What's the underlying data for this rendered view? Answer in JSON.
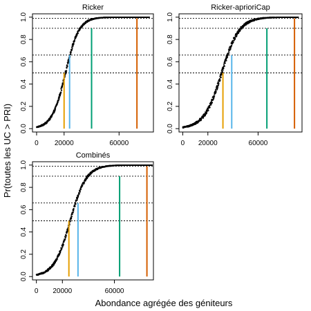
{
  "figure": {
    "xlabel": "Abondance agrégée des géniteurs",
    "ylabel": "Pr(toutes les UC > PRI)"
  },
  "chart_data": [
    {
      "type": "scatter",
      "title": "Ricker",
      "xlabel": "Abondance agrégée des géniteurs",
      "ylabel": "Pr(toutes les UC > PRI)",
      "xlim": [
        -3000,
        85000
      ],
      "ylim": [
        -0.03,
        1.03
      ],
      "x_ticks": [
        0,
        20000,
        60000
      ],
      "y_ticks": [
        0.0,
        0.2,
        0.4,
        0.6,
        0.8,
        1.0
      ],
      "curve": {
        "midpoint": 21000,
        "scale": 4900,
        "x_min": 0,
        "x_max": 82000,
        "spread": 0.02
      },
      "hlines": [
        0.5,
        0.66,
        0.9,
        0.99
      ],
      "vlines": [
        {
          "x": 20000,
          "y": 0.5,
          "color": "#E69F00"
        },
        {
          "x": 24000,
          "y": 0.66,
          "color": "#56B4E9"
        },
        {
          "x": 40000,
          "y": 0.9,
          "color": "#009E73"
        },
        {
          "x": 73000,
          "y": 0.99,
          "color": "#D55E00"
        }
      ]
    },
    {
      "type": "scatter",
      "title": "Ricker-aprioriCap",
      "xlabel": "Abondance agrégée des géniteurs",
      "ylabel": "Pr(toutes les UC > PRI)",
      "xlim": [
        -3000,
        95000
      ],
      "ylim": [
        -0.03,
        1.03
      ],
      "x_ticks": [
        0,
        20000,
        60000
      ],
      "y_ticks": [
        0.0,
        0.2,
        0.4,
        0.6,
        0.8,
        1.0
      ],
      "curve": {
        "midpoint": 31000,
        "scale": 7000,
        "x_min": 0,
        "x_max": 92000,
        "spread": 0.025
      },
      "hlines": [
        0.5,
        0.66,
        0.9,
        0.99
      ],
      "vlines": [
        {
          "x": 32000,
          "y": 0.5,
          "color": "#E69F00"
        },
        {
          "x": 39000,
          "y": 0.66,
          "color": "#56B4E9"
        },
        {
          "x": 67000,
          "y": 0.9,
          "color": "#009E73"
        },
        {
          "x": 89000,
          "y": 0.99,
          "color": "#D55E00"
        }
      ]
    },
    {
      "type": "scatter",
      "title": "Combinés",
      "xlabel": "Abondance agrégée des géniteurs",
      "ylabel": "Pr(toutes les UC > PRI)",
      "xlim": [
        -3000,
        90000
      ],
      "ylim": [
        -0.03,
        1.03
      ],
      "x_ticks": [
        0,
        20000,
        60000
      ],
      "y_ticks": [
        0.0,
        0.2,
        0.4,
        0.6,
        0.8,
        1.0
      ],
      "curve": {
        "midpoint": 26000,
        "scale": 6200,
        "x_min": 0,
        "x_max": 89000,
        "spread": 0.02
      },
      "hlines": [
        0.5,
        0.66,
        0.9,
        0.99
      ],
      "vlines": [
        {
          "x": 25000,
          "y": 0.5,
          "color": "#E69F00"
        },
        {
          "x": 32000,
          "y": 0.66,
          "color": "#56B4E9"
        },
        {
          "x": 64000,
          "y": 0.9,
          "color": "#009E73"
        },
        {
          "x": 85000,
          "y": 0.99,
          "color": "#D55E00"
        }
      ]
    }
  ]
}
